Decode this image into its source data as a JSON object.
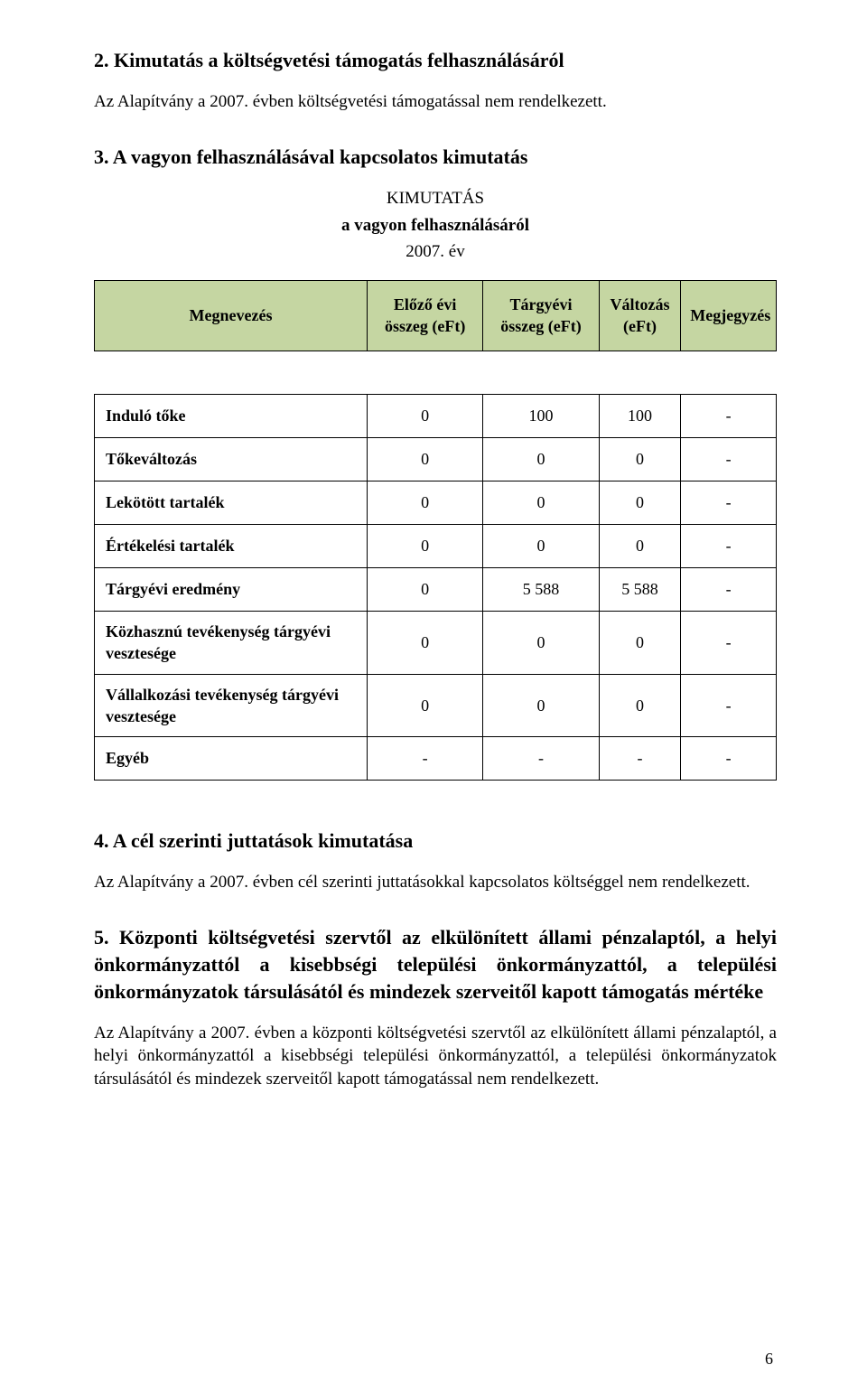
{
  "section2": {
    "heading": "2. Kimutatás a költségvetési támogatás felhasználásáról",
    "para": "Az Alapítvány a 2007. évben költségvetési támogatással nem rendelkezett."
  },
  "section3": {
    "heading": "3. A vagyon felhasználásával kapcsolatos kimutatás",
    "tableTitle1": "KIMUTATÁS",
    "tableTitle2": "a vagyon felhasználásáról",
    "tableTitle3": "2007. év",
    "columns": [
      "Megnevezés",
      "Előző évi összeg (eFt)",
      "Tárgyévi összeg (eFt)",
      "Változás (eFt)",
      "Megjegyzés"
    ],
    "rows": [
      {
        "label": "Induló tőke",
        "c1": "0",
        "c2": "100",
        "c3": "100",
        "c4": "-"
      },
      {
        "label": "Tőkeváltozás",
        "c1": "0",
        "c2": "0",
        "c3": "0",
        "c4": "-"
      },
      {
        "label": "Lekötött tartalék",
        "c1": "0",
        "c2": "0",
        "c3": "0",
        "c4": "-"
      },
      {
        "label": "Értékelési tartalék",
        "c1": "0",
        "c2": "0",
        "c3": "0",
        "c4": "-"
      },
      {
        "label": "Tárgyévi eredmény",
        "c1": "0",
        "c2": "5 588",
        "c3": "5 588",
        "c4": "-"
      },
      {
        "label": "Közhasznú tevékenység tárgyévi vesztesége",
        "c1": "0",
        "c2": "0",
        "c3": "0",
        "c4": "-"
      },
      {
        "label": "Vállalkozási tevékenység tárgyévi vesztesége",
        "c1": "0",
        "c2": "0",
        "c3": "0",
        "c4": "-"
      },
      {
        "label": "Egyéb",
        "c1": "-",
        "c2": "-",
        "c3": "-",
        "c4": "-"
      }
    ]
  },
  "section4": {
    "heading": "4. A cél szerinti juttatások kimutatása",
    "para": "Az Alapítvány a 2007. évben cél szerinti juttatásokkal kapcsolatos költséggel nem rendelkezett."
  },
  "section5": {
    "heading": "5. Központi költségvetési szervtől az elkülönített állami pénzalaptól, a helyi önkormányzattól a kisebbségi települési önkormányzattól, a települési önkormányzatok társulásától és mindezek szerveitől kapott támogatás mértéke",
    "para": "Az Alapítvány a 2007. évben a központi költségvetési szervtől az elkülönített állami pénzalaptól, a helyi önkormányzattól a kisebbségi települési önkormányzattól, a települési önkormányzatok társulásától és mindezek szerveitől kapott támogatással nem rendelkezett."
  },
  "pageNumber": "6",
  "style": {
    "headerBg": "#c5d6a2",
    "border": "#000000",
    "text": "#000000",
    "bg": "#ffffff"
  }
}
